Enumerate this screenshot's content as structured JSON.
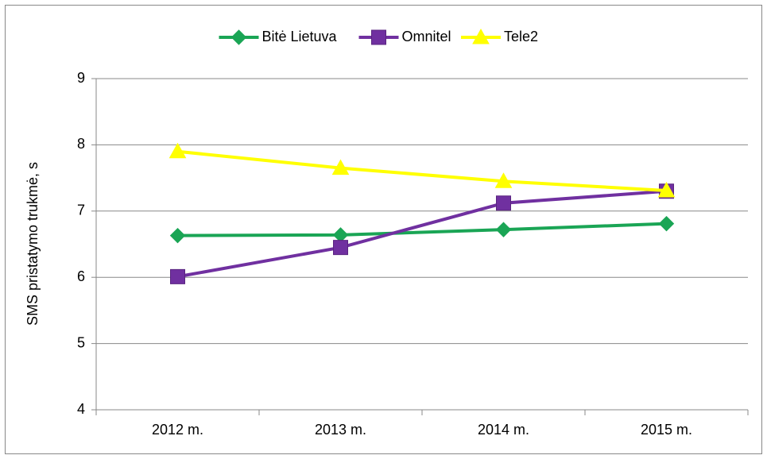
{
  "chart_data": {
    "type": "line",
    "y_label": "SMS pristatymo trukmė, s",
    "categories": [
      "2012 m.",
      "2013 m.",
      "2014 m.",
      "2015 m."
    ],
    "series": [
      {
        "name": "Bitė Lietuva",
        "color": "#1aa555",
        "marker": "diamond",
        "values": [
          6.63,
          6.64,
          6.72,
          6.81
        ]
      },
      {
        "name": "Omnitel",
        "color": "#7030a0",
        "marker": "square",
        "values": [
          6.01,
          6.45,
          7.12,
          7.3
        ]
      },
      {
        "name": "Tele2",
        "color": "#ffff00",
        "marker": "triangle",
        "values": [
          7.9,
          7.65,
          7.45,
          7.31
        ]
      }
    ],
    "ylim": [
      4,
      9
    ],
    "yticks": [
      4,
      5,
      6,
      7,
      8,
      9
    ],
    "grid": true,
    "legend": "top"
  }
}
